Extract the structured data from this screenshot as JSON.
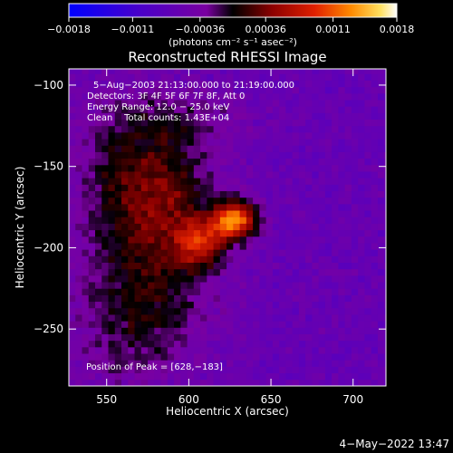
{
  "chart_data": {
    "type": "heatmap",
    "title": "Reconstructed RHESSI Image",
    "xlabel": "Heliocentric X (arcsec)",
    "ylabel": "Heliocentric Y (arcsec)",
    "xlim": [
      527,
      720
    ],
    "ylim": [
      -285,
      -90
    ],
    "xticks": [
      550,
      600,
      650,
      700
    ],
    "yticks": [
      -100,
      -150,
      -200,
      -250
    ],
    "xtick_labels": [
      "550",
      "600",
      "650",
      "700"
    ],
    "ytick_labels": [
      "−100",
      "−150",
      "−200",
      "−250"
    ],
    "colorbar": {
      "range": [
        -0.0018,
        0.0018
      ],
      "tick_values": [
        -0.0018,
        -0.0011,
        -0.00036,
        0.00036,
        0.0011,
        0.0018
      ],
      "tick_labels": [
        "−0.0018",
        "−0.0011",
        "−0.00036",
        "0.00036",
        "0.0011",
        "0.0018"
      ],
      "units_label": "(photons cm⁻² s⁻¹ asec⁻²)"
    },
    "annotations": {
      "time_range": "5−Aug−2003 21:13:00.000 to 21:19:00.000",
      "detectors": "Detectors: 3F 4F 5F 6F 7F 8F, Att 0",
      "energy_range": "Energy Range: 12.0 − 25.0 keV",
      "clean_counts": "Clean    Total counts: 1.43E+04",
      "peak": "Position of Peak = [628,−183]"
    },
    "peak_position": [
      628,
      -183
    ],
    "sources": [
      {
        "x": 628,
        "y": -183,
        "sigma_x": 9,
        "sigma_y": 8,
        "amp": 0.00185
      },
      {
        "x": 607,
        "y": -197,
        "sigma_x": 10,
        "sigma_y": 10,
        "amp": 0.0011
      },
      {
        "x": 588,
        "y": -170,
        "sigma_x": 20,
        "sigma_y": 28,
        "amp": 0.0007
      },
      {
        "x": 560,
        "y": -155,
        "sigma_x": 22,
        "sigma_y": 35,
        "amp": 0.00055
      },
      {
        "x": 575,
        "y": -225,
        "sigma_x": 28,
        "sigma_y": 28,
        "amp": 0.00045
      },
      {
        "x": 565,
        "y": -260,
        "sigma_x": 25,
        "sigma_y": 25,
        "amp": 0.0003
      },
      {
        "x": 600,
        "y": -120,
        "sigma_x": 25,
        "sigma_y": 12,
        "amp": 0.0003
      }
    ],
    "background_level": -0.0006
  },
  "footer": {
    "timestamp": "4−May−2022 13:47"
  }
}
